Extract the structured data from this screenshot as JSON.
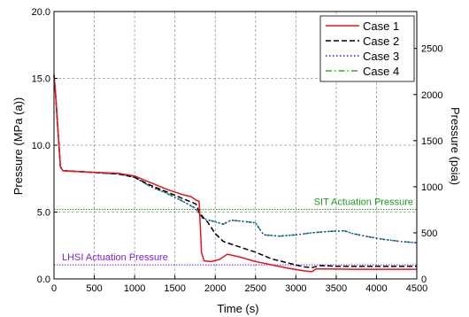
{
  "chart_data": {
    "type": "line",
    "xlabel": "Time (s)",
    "ylabel": "Pressure (MPa (a))",
    "ylabel_right": "Pressure (psia)",
    "xlim": [
      0,
      4500
    ],
    "ylim": [
      0,
      20
    ],
    "ylim_right": [
      0,
      2900.8
    ],
    "x_ticks": [
      0,
      500,
      1000,
      1500,
      2000,
      2500,
      3000,
      3500,
      4000,
      4500
    ],
    "y_ticks": [
      0.0,
      5.0,
      10.0,
      15.0,
      20.0
    ],
    "y_tick_labels": [
      "0.0",
      "5.0",
      "10.0",
      "15.0",
      "20.0"
    ],
    "y_right_ticks": [
      0,
      500,
      1000,
      1500,
      2000,
      2500
    ],
    "grid": true,
    "legend_position": "top-right",
    "series": [
      {
        "name": "Case 1",
        "color": "#e8141b",
        "dash": "solid",
        "points": [
          [
            0,
            15.2
          ],
          [
            20,
            13.8
          ],
          [
            50,
            11.0
          ],
          [
            80,
            8.4
          ],
          [
            110,
            8.1
          ],
          [
            200,
            8.05
          ],
          [
            400,
            8.0
          ],
          [
            600,
            7.95
          ],
          [
            800,
            7.9
          ],
          [
            1000,
            7.7
          ],
          [
            1200,
            7.2
          ],
          [
            1400,
            6.7
          ],
          [
            1600,
            6.3
          ],
          [
            1700,
            6.15
          ],
          [
            1760,
            5.9
          ],
          [
            1800,
            5.8
          ],
          [
            1830,
            2.0
          ],
          [
            1860,
            1.35
          ],
          [
            1950,
            1.3
          ],
          [
            2050,
            1.45
          ],
          [
            2150,
            1.85
          ],
          [
            2300,
            1.65
          ],
          [
            2500,
            1.3
          ],
          [
            2700,
            1.05
          ],
          [
            2900,
            0.8
          ],
          [
            3100,
            0.6
          ],
          [
            3200,
            0.55
          ],
          [
            3250,
            0.75
          ],
          [
            3400,
            0.75
          ],
          [
            3700,
            0.72
          ],
          [
            4000,
            0.72
          ],
          [
            4500,
            0.72
          ]
        ]
      },
      {
        "name": "Case 2",
        "color": "#000000",
        "dash": "dash",
        "points": [
          [
            0,
            15.2
          ],
          [
            20,
            13.8
          ],
          [
            50,
            11.0
          ],
          [
            80,
            8.4
          ],
          [
            110,
            8.1
          ],
          [
            400,
            8.0
          ],
          [
            800,
            7.85
          ],
          [
            1000,
            7.6
          ],
          [
            1200,
            7.0
          ],
          [
            1400,
            6.5
          ],
          [
            1600,
            6.0
          ],
          [
            1760,
            5.6
          ],
          [
            1800,
            5.0
          ],
          [
            1850,
            4.6
          ],
          [
            1900,
            4.3
          ],
          [
            2000,
            3.4
          ],
          [
            2100,
            2.8
          ],
          [
            2300,
            2.4
          ],
          [
            2500,
            2.0
          ],
          [
            2700,
            1.5
          ],
          [
            2900,
            1.2
          ],
          [
            3100,
            0.9
          ],
          [
            3200,
            0.85
          ],
          [
            3300,
            1.0
          ],
          [
            3500,
            0.95
          ],
          [
            4000,
            0.95
          ],
          [
            4500,
            0.95
          ]
        ]
      },
      {
        "name": "Case 3",
        "color": "#1a1ae8",
        "dash": "dot",
        "points": [
          [
            0,
            15.2
          ],
          [
            20,
            13.8
          ],
          [
            50,
            11.0
          ],
          [
            80,
            8.4
          ],
          [
            110,
            8.1
          ],
          [
            400,
            8.0
          ],
          [
            800,
            7.85
          ],
          [
            1000,
            7.6
          ],
          [
            1200,
            6.9
          ],
          [
            1400,
            6.4
          ],
          [
            1600,
            5.8
          ],
          [
            1750,
            5.3
          ],
          [
            1850,
            4.5
          ],
          [
            1950,
            4.35
          ],
          [
            2100,
            4.1
          ],
          [
            2200,
            4.4
          ],
          [
            2350,
            4.3
          ],
          [
            2500,
            4.2
          ],
          [
            2600,
            3.3
          ],
          [
            2800,
            3.2
          ],
          [
            3000,
            3.3
          ],
          [
            3200,
            3.45
          ],
          [
            3400,
            3.55
          ],
          [
            3600,
            3.6
          ],
          [
            3700,
            3.4
          ],
          [
            3900,
            3.15
          ],
          [
            4100,
            2.95
          ],
          [
            4300,
            2.8
          ],
          [
            4500,
            2.7
          ]
        ]
      },
      {
        "name": "Case 4",
        "color": "#22b522",
        "dash": "dashdot",
        "points": [
          [
            0,
            15.3
          ],
          [
            20,
            13.9
          ],
          [
            50,
            11.0
          ],
          [
            80,
            8.4
          ],
          [
            110,
            8.1
          ],
          [
            400,
            8.0
          ],
          [
            800,
            7.85
          ],
          [
            1000,
            7.6
          ],
          [
            1200,
            6.9
          ],
          [
            1400,
            6.4
          ],
          [
            1600,
            5.8
          ],
          [
            1750,
            5.3
          ],
          [
            1850,
            4.5
          ],
          [
            1950,
            4.35
          ],
          [
            2100,
            4.1
          ],
          [
            2200,
            4.4
          ],
          [
            2350,
            4.3
          ],
          [
            2500,
            4.2
          ],
          [
            2600,
            3.3
          ],
          [
            2800,
            3.2
          ],
          [
            3000,
            3.3
          ],
          [
            3200,
            3.45
          ],
          [
            3400,
            3.55
          ],
          [
            3600,
            3.6
          ],
          [
            3700,
            3.4
          ],
          [
            3900,
            3.15
          ],
          [
            4100,
            2.95
          ],
          [
            4300,
            2.8
          ],
          [
            4500,
            2.7
          ]
        ]
      }
    ],
    "reference_lines": [
      {
        "label": "SIT Actuation Pressure",
        "y": 5.2,
        "color": "#1f9a1f"
      },
      {
        "label": "LHSI Actuation Pressure",
        "y": 1.05,
        "color": "#7a1fe0"
      }
    ]
  }
}
